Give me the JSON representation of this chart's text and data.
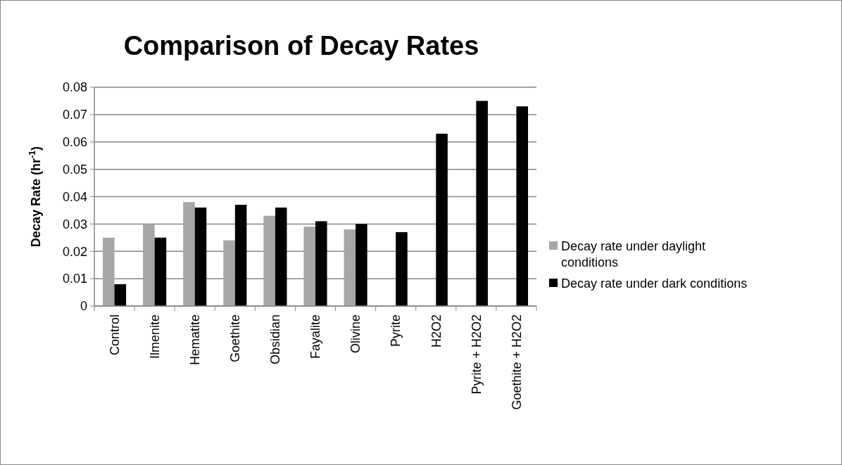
{
  "chart_data": {
    "type": "bar",
    "title": "Comparison of Decay Rates",
    "ylabel": "Decay Rate (hr$^{-1}$)",
    "categories": [
      "Control",
      "Ilmenite",
      "Hematite",
      "Goethite",
      "Obsidian",
      "Fayalite",
      "Olivine",
      "Pyrite",
      "H2O2",
      "Pyrite + H2O2",
      "Goethite + H2O2"
    ],
    "series": [
      {
        "name": "Decay rate under daylight conditions",
        "color": "#a6a6a6",
        "values": [
          0.025,
          0.03,
          0.038,
          0.024,
          0.033,
          0.029,
          0.028,
          null,
          null,
          null,
          null
        ]
      },
      {
        "name": "Decay rate under dark conditions",
        "color": "#000000",
        "values": [
          0.008,
          0.025,
          0.036,
          0.037,
          0.036,
          0.031,
          0.03,
          0.027,
          0.063,
          0.075,
          0.073
        ]
      }
    ],
    "ylim": [
      0,
      0.08
    ],
    "yticks": [
      0,
      0.01,
      0.02,
      0.03,
      0.04,
      0.05,
      0.06,
      0.07,
      0.08
    ],
    "grid": "y",
    "legend": "right"
  }
}
